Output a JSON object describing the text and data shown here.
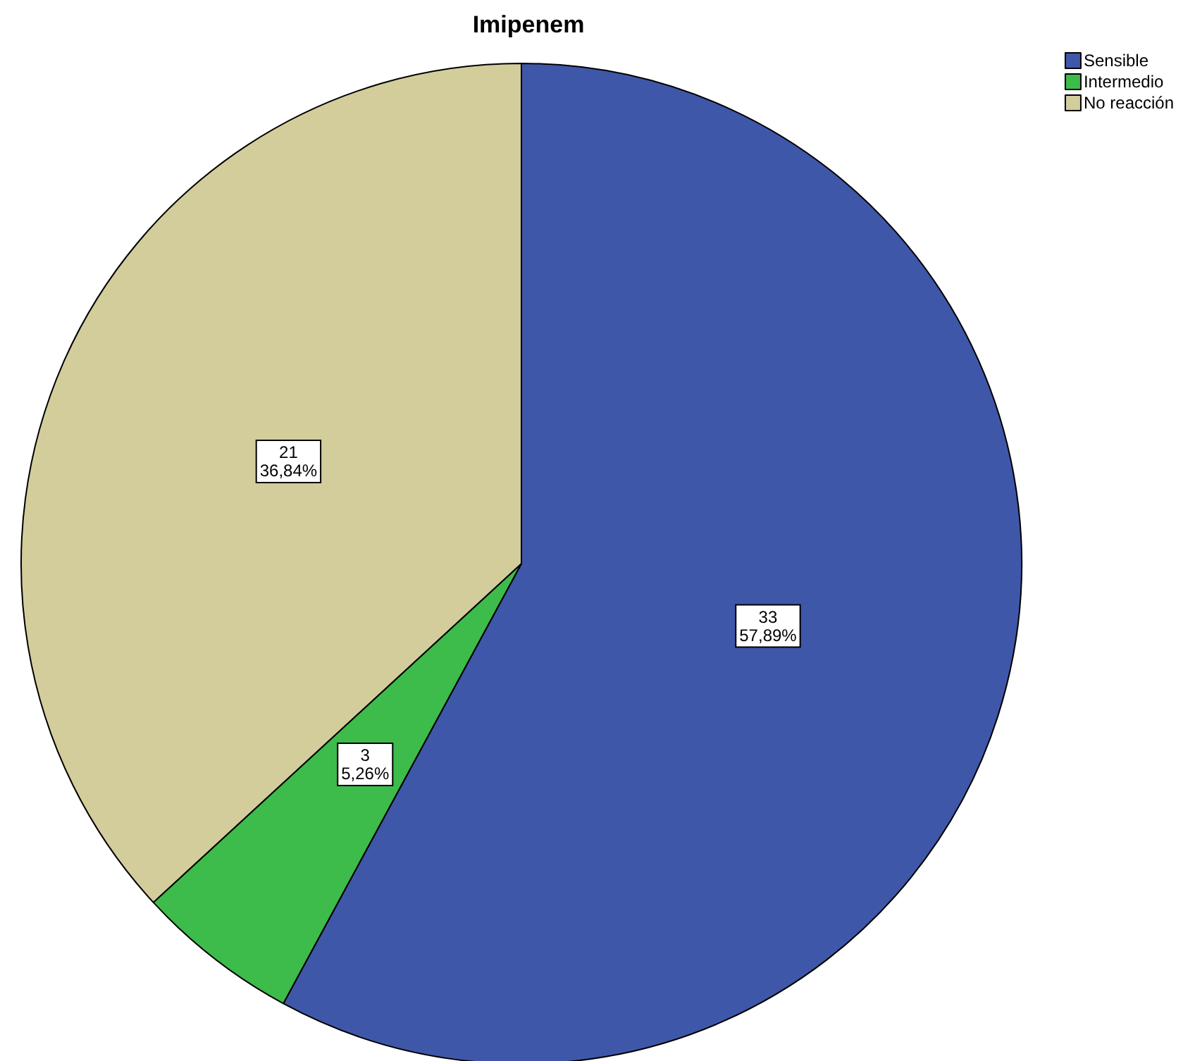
{
  "chart_data": {
    "type": "pie",
    "title": "Imipenem",
    "categories": [
      "Sensible",
      "Intermedio",
      "No reacción"
    ],
    "values": [
      33,
      3,
      21
    ],
    "colors": [
      "#3f57a9",
      "#3dbb4b",
      "#d3cd9b"
    ],
    "value_labels": [
      "33\n57,89%",
      "3\n5,26%",
      "21\n36,84%"
    ],
    "legend": "top right"
  }
}
